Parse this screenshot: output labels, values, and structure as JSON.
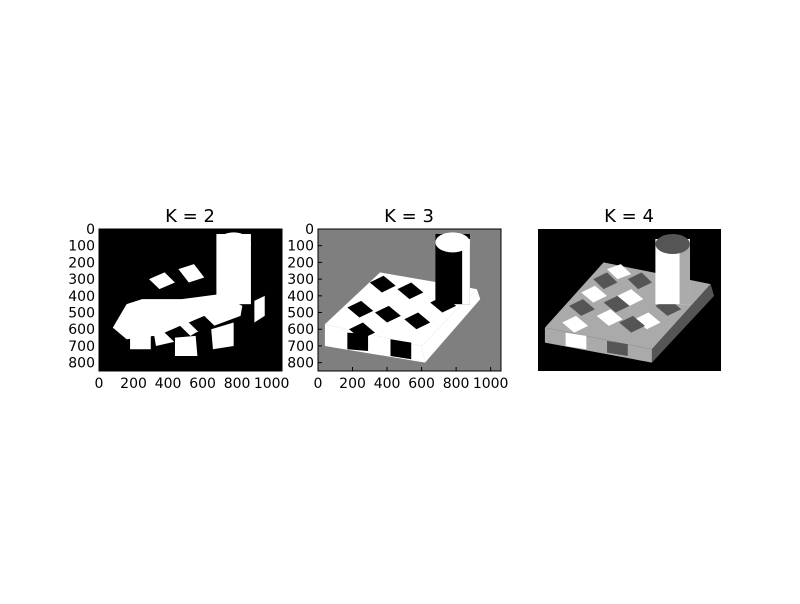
{
  "chart_data": [
    {
      "type": "image",
      "title": "K = 2",
      "show_axes": true,
      "xlim": [
        0,
        1060
      ],
      "ylim": [
        850,
        0
      ],
      "xticks": [
        0,
        200,
        400,
        600,
        800,
        1000
      ],
      "xtick_labels": [
        "0",
        "200",
        "400",
        "600",
        "800",
        "1000"
      ],
      "yticks": [
        0,
        100,
        200,
        300,
        400,
        500,
        600,
        700,
        800
      ],
      "ytick_labels": [
        "0",
        "100",
        "200",
        "300",
        "400",
        "500",
        "600",
        "700",
        "800"
      ],
      "levels": [
        "#000000",
        "#ffffff"
      ]
    },
    {
      "type": "image",
      "title": "K = 3",
      "show_axes": true,
      "xlim": [
        0,
        1060
      ],
      "ylim": [
        850,
        0
      ],
      "xticks": [
        0,
        200,
        400,
        600,
        800,
        1000
      ],
      "xtick_labels": [
        "0",
        "200",
        "400",
        "600",
        "800",
        "1000"
      ],
      "yticks": [
        0,
        100,
        200,
        300,
        400,
        500,
        600,
        700,
        800
      ],
      "ytick_labels": [
        "0",
        "100",
        "200",
        "300",
        "400",
        "500",
        "600",
        "700",
        "800"
      ],
      "levels": [
        "#000000",
        "#7f7f7f",
        "#ffffff"
      ]
    },
    {
      "type": "image",
      "title": "K = 4",
      "show_axes": false,
      "levels": [
        "#000000",
        "#555555",
        "#aaaaaa",
        "#ffffff"
      ]
    }
  ]
}
